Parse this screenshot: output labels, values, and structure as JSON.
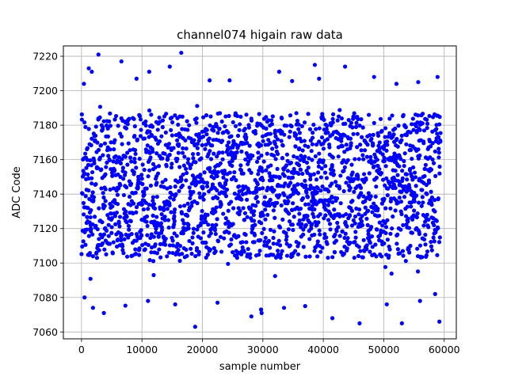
{
  "chart_data": {
    "type": "scatter",
    "title": "channel074 higain raw data",
    "xlabel": "sample number",
    "ylabel": "ADC Code",
    "xlim": [
      -3000,
      62000
    ],
    "ylim": [
      7056,
      7226
    ],
    "xticks": [
      0,
      10000,
      20000,
      30000,
      40000,
      50000,
      60000
    ],
    "yticks": [
      7060,
      7080,
      7100,
      7120,
      7140,
      7160,
      7180,
      7200,
      7220
    ],
    "grid": true,
    "marker_color": "#0000ff",
    "sample_count": 59400,
    "dense_band": [
      7103,
      7187
    ],
    "outliers": [
      [
        2800,
        7221
      ],
      [
        16500,
        7222
      ],
      [
        6600,
        7217
      ],
      [
        1700,
        7211
      ],
      [
        1200,
        7213
      ],
      [
        38600,
        7215
      ],
      [
        43600,
        7214
      ],
      [
        14600,
        7214
      ],
      [
        11200,
        7211
      ],
      [
        32700,
        7211
      ],
      [
        58900,
        7208
      ],
      [
        400,
        7204
      ],
      [
        9100,
        7207
      ],
      [
        21200,
        7206
      ],
      [
        24500,
        7206
      ],
      [
        39300,
        7207
      ],
      [
        48400,
        7208
      ],
      [
        55700,
        7205
      ],
      [
        52100,
        7204
      ],
      [
        18800,
        7063
      ],
      [
        29700,
        7073
      ],
      [
        29800,
        7071
      ],
      [
        46000,
        7065
      ],
      [
        53000,
        7065
      ],
      [
        59200,
        7066
      ],
      [
        3700,
        7071
      ],
      [
        28100,
        7069
      ],
      [
        41500,
        7068
      ],
      [
        500,
        7080
      ],
      [
        1900,
        7074
      ],
      [
        11000,
        7078
      ],
      [
        15500,
        7076
      ],
      [
        22500,
        7077
      ],
      [
        33500,
        7074
      ],
      [
        37000,
        7075
      ],
      [
        50500,
        7076
      ],
      [
        56000,
        7078
      ],
      [
        58500,
        7082
      ]
    ]
  }
}
